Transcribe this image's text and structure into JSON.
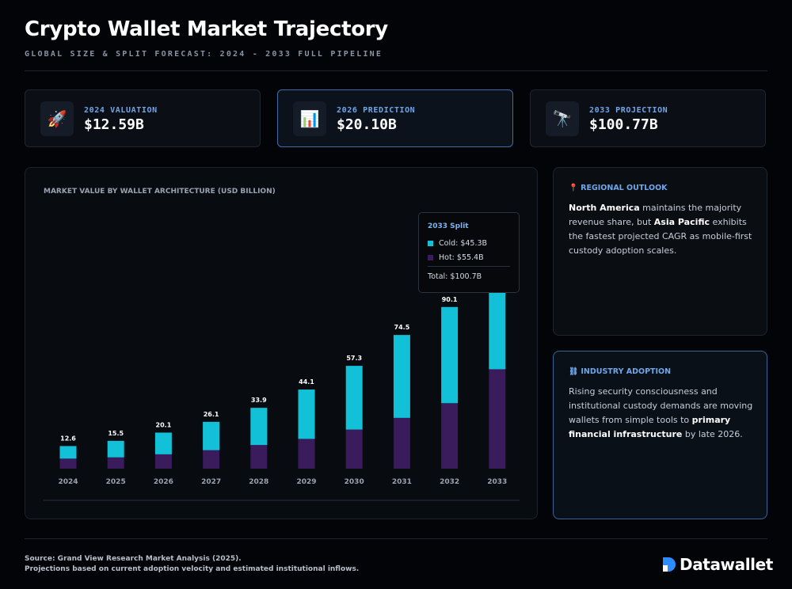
{
  "header": {
    "title": "Crypto Wallet Market Trajectory",
    "subtitle": "GLOBAL SIZE & SPLIT FORECAST: 2024 - 2033 FULL PIPELINE"
  },
  "kpis": [
    {
      "icon": "rocket-icon",
      "glyph": "🚀",
      "label": "2024 VALUATION",
      "value": "$12.59B"
    },
    {
      "icon": "bar-chart-icon",
      "glyph": "📊",
      "label": "2026 PREDICTION",
      "value": "$20.10B"
    },
    {
      "icon": "telescope-icon",
      "glyph": "🔭",
      "label": "2033 PROJECTION",
      "value": "$100.77B"
    }
  ],
  "chart_heading": "MARKET VALUE BY WALLET ARCHITECTURE (USD BILLION)",
  "chart_data": {
    "type": "bar",
    "stacked": true,
    "categories": [
      "2024",
      "2025",
      "2026",
      "2027",
      "2028",
      "2029",
      "2030",
      "2031",
      "2032",
      "2033"
    ],
    "series": [
      {
        "name": "Hot",
        "color": "#3a1c5c",
        "values": [
          5.6,
          6.3,
          8.0,
          10.3,
          13.2,
          16.6,
          21.8,
          28.3,
          36.5,
          55.4
        ]
      },
      {
        "name": "Cold",
        "color": "#12c0d8",
        "values": [
          7.0,
          9.2,
          12.1,
          15.8,
          20.7,
          27.5,
          35.5,
          46.2,
          53.6,
          45.3
        ]
      }
    ],
    "totals": [
      "12.6",
      "15.5",
      "20.1",
      "26.1",
      "33.9",
      "44.1",
      "57.3",
      "74.5",
      "90.1",
      "100.7"
    ],
    "ylim": [
      0,
      108
    ],
    "grid": false,
    "legend": "none"
  },
  "tooltip": {
    "title": "2033 Split",
    "cold": "Cold: $45.3B",
    "hot": "Hot: $55.4B",
    "total": "Total: $100.7B",
    "cold_color": "#12c0d8",
    "hot_color": "#3a1c5c"
  },
  "regional": {
    "icon": "📍",
    "heading": "REGIONAL OUTLOOK",
    "t1": "North America",
    "t2": " maintains the majority revenue share, but ",
    "t3": "Asia Pacific",
    "t4": " exhibits the fastest projected CAGR as mobile-first custody adoption scales."
  },
  "industry": {
    "icon": "⛓",
    "heading": "INDUSTRY ADOPTION",
    "t1": "Rising security consciousness and institutional custody demands are moving wallets from simple tools to ",
    "t2": "primary financial infrastructure",
    "t3": " by late 2026."
  },
  "footer": {
    "source_line1": "Source: Grand View Research Market Analysis (2025).",
    "source_line2": "Projections based on current adoption velocity and estimated institutional inflows.",
    "brand": "Datawallet",
    "brand_color": "#2d8cff"
  }
}
